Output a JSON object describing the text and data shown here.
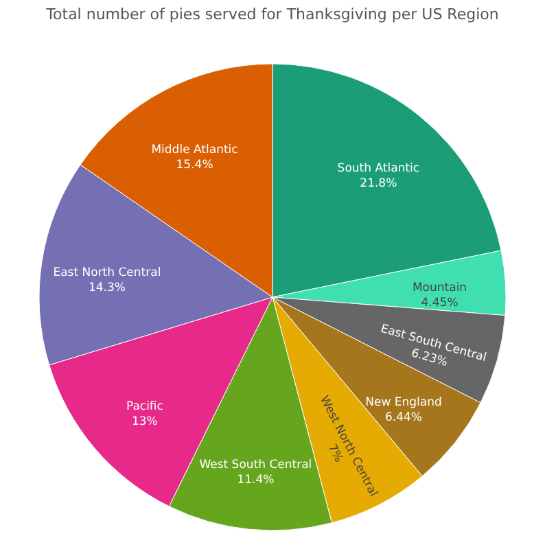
{
  "chart_data": {
    "type": "pie",
    "title": "Total number of pies served for Thanksgiving per US Region",
    "categories": [
      "South Atlantic",
      "Mountain",
      "East South Central",
      "New England",
      "West North Central",
      "West South Central",
      "Pacific",
      "East North Central",
      "Middle Atlantic"
    ],
    "values": [
      21.8,
      4.45,
      6.23,
      6.44,
      7,
      11.4,
      13,
      14.3,
      15.4
    ],
    "value_labels": [
      "21.8%",
      "4.45%",
      "6.23%",
      "6.44%",
      "7%",
      "11.4%",
      "13%",
      "14.3%",
      "15.4%"
    ],
    "colors": [
      "#1b9e77",
      "#40dfb0",
      "#666666",
      "#a6761d",
      "#e6ab02",
      "#66a61e",
      "#e7298a",
      "#7570b3",
      "#d95f02"
    ],
    "legend": false
  }
}
